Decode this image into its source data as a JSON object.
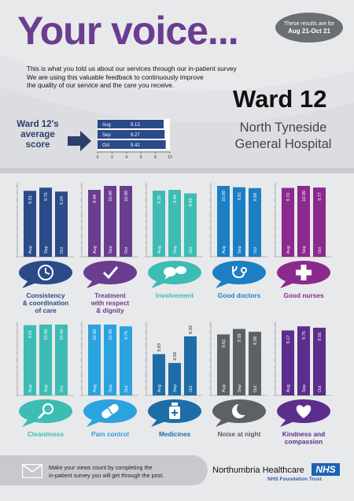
{
  "header": {
    "title": "Your voice...",
    "period_label": "These results are for",
    "period_value": "Aug 21-Oct 21",
    "intro_lines": [
      "This is what you told us about our services through our in-patient survey",
      "We are using this valuable feedback to continuously improve",
      "the quality of our service and the care you receive."
    ],
    "ward": "Ward 12",
    "hospital_line1": "North Tyneside",
    "hospital_line2": "General Hospital"
  },
  "average": {
    "label_lines": [
      "Ward 12's",
      "average",
      "score"
    ],
    "months": [
      "Aug",
      "Sep",
      "Oct"
    ],
    "values": [
      9.13,
      9.27,
      9.42
    ],
    "values_text": [
      "9.13",
      "9.27",
      "9.42"
    ],
    "axis_ticks": [
      "0",
      "2",
      "4",
      "6",
      "8",
      "10"
    ],
    "axis_max": 10
  },
  "colors": {
    "navy": "#2b4a8a",
    "purple": "#6a3d91",
    "teal": "#3dbcb4",
    "blue": "#1c7fc4",
    "magenta": "#8b2a8e",
    "sky": "#2ba3df",
    "gray": "#5d6064",
    "dark_purple": "#5b2d8c"
  },
  "chart_data": [
    {
      "type": "bar",
      "categories": [
        "Aug",
        "Sep",
        "Oct"
      ],
      "values": [
        9.31,
        9.75,
        9.2
      ],
      "value_labels": [
        "9.31",
        "9.75",
        "9.20"
      ],
      "ylim": [
        0,
        10
      ],
      "name": "Consistency & coordination of care",
      "label_lines": [
        "Consistency",
        "& coordination",
        "of care"
      ],
      "color": "#2b4a8a",
      "icon": "clock-icon"
    },
    {
      "type": "bar",
      "categories": [
        "Aug",
        "Sep",
        "Oct"
      ],
      "values": [
        9.44,
        10.0,
        10.0
      ],
      "value_labels": [
        "9.44",
        "10.00",
        "10.00"
      ],
      "ylim": [
        0,
        10
      ],
      "name": "Treatment with respect & dignity",
      "label_lines": [
        "Treatment",
        "with respect",
        "& dignity"
      ],
      "color": "#6a3d91",
      "icon": "checkmark-icon"
    },
    {
      "type": "bar",
      "categories": [
        "Aug",
        "Sep",
        "Oct"
      ],
      "values": [
        9.33,
        9.44,
        8.95
      ],
      "value_labels": [
        "9.33",
        "9.44",
        "8.95"
      ],
      "ylim": [
        0,
        10
      ],
      "name": "Involvement",
      "label_lines": [
        "Involvement"
      ],
      "color": "#3dbcb4",
      "icon": "speech-bubbles-icon"
    },
    {
      "type": "bar",
      "categories": [
        "Aug",
        "Sep",
        "Oct"
      ],
      "values": [
        10.0,
        9.81,
        9.69
      ],
      "value_labels": [
        "10.00",
        "9.81",
        "9.69"
      ],
      "ylim": [
        0,
        10
      ],
      "name": "Good doctors",
      "label_lines": [
        "Good doctors"
      ],
      "color": "#1c7fc4",
      "icon": "stethoscope-icon"
    },
    {
      "type": "bar",
      "categories": [
        "Aug",
        "Sep",
        "Oct"
      ],
      "values": [
        9.72,
        10.0,
        9.77
      ],
      "value_labels": [
        "9.72",
        "10.00",
        "9.77"
      ],
      "ylim": [
        0,
        10
      ],
      "name": "Good nurses",
      "label_lines": [
        "Good nurses"
      ],
      "color": "#8b2a8e",
      "icon": "cross-icon"
    },
    {
      "type": "bar",
      "categories": [
        "Aug",
        "Sep",
        "Oct"
      ],
      "values": [
        9.91,
        10.0,
        10.0
      ],
      "value_labels": [
        "9.91",
        "10.00",
        "10.00"
      ],
      "ylim": [
        0,
        10
      ],
      "name": "Cleanliness",
      "label_lines": [
        "Cleanliness"
      ],
      "color": "#3dbcb4",
      "icon": "magnifier-icon"
    },
    {
      "type": "bar",
      "categories": [
        "Aug",
        "Sep",
        "Oct"
      ],
      "values": [
        10.0,
        10.0,
        9.75
      ],
      "value_labels": [
        "10.00",
        "10.00",
        "9.75"
      ],
      "ylim": [
        0,
        10
      ],
      "name": "Pain control",
      "label_lines": [
        "Pain control"
      ],
      "color": "#2ba3df",
      "icon": "pill-icon"
    },
    {
      "type": "bar",
      "categories": [
        "Aug",
        "Sep",
        "Oct"
      ],
      "values": [
        5.83,
        4.58,
        8.33
      ],
      "value_labels": [
        "5.83",
        "4.58",
        "8.33"
      ],
      "ylim": [
        0,
        10
      ],
      "name": "Medicines",
      "label_lines": [
        "Medicines"
      ],
      "color": "#1c6da8",
      "icon": "medicine-bottle-icon"
    },
    {
      "type": "bar",
      "categories": [
        "Aug",
        "Sep",
        "Oct"
      ],
      "values": [
        8.61,
        9.38,
        8.98
      ],
      "value_labels": [
        "8.61",
        "9.38",
        "8.98"
      ],
      "ylim": [
        0,
        10
      ],
      "name": "Noise at night",
      "label_lines": [
        "Noise at night"
      ],
      "color": "#5d6064",
      "icon": "moon-icon"
    },
    {
      "type": "bar",
      "categories": [
        "Aug",
        "Sep",
        "Oct"
      ],
      "values": [
        9.17,
        9.75,
        9.55
      ],
      "value_labels": [
        "9.17",
        "9.75",
        "9.55"
      ],
      "ylim": [
        0,
        10
      ],
      "name": "Kindness and compassion",
      "label_lines": [
        "Kindness and",
        "compassion"
      ],
      "color": "#5b2d8c",
      "icon": "heart-icon"
    }
  ],
  "footer": {
    "line1": "Make your views count by completing the",
    "line2": "in-patient survey you will get through the post.",
    "org_name": "Northumbria Healthcare",
    "org_sub": "NHS Foundation Trust",
    "nhs_logo": "NHS",
    "icon": "envelope-icon"
  }
}
